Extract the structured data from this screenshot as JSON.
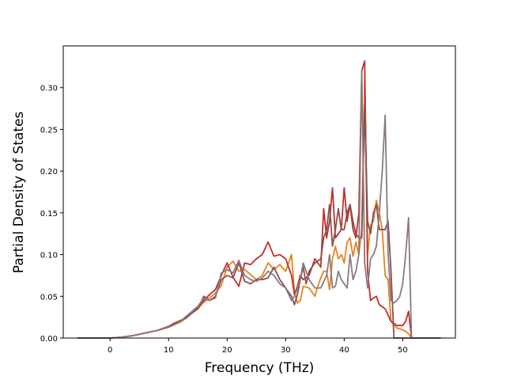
{
  "chart_data": {
    "type": "line",
    "xlabel": "Frequency (THz)",
    "ylabel": "Partial Density of States",
    "xlim": [
      -8,
      59
    ],
    "ylim": [
      0,
      0.35
    ],
    "xticks": [
      0,
      10,
      20,
      30,
      40,
      50
    ],
    "yticks": [
      0.0,
      0.05,
      0.1,
      0.15,
      0.2,
      0.25,
      0.3
    ],
    "ytick_labels": [
      "0.00",
      "0.05",
      "0.10",
      "0.15",
      "0.20",
      "0.25",
      "0.30"
    ],
    "grid": false,
    "legend": "none",
    "series": [
      {
        "color": "#e8821e",
        "points": [
          [
            -5.6,
            0
          ],
          [
            0,
            0
          ],
          [
            2,
            0.001
          ],
          [
            4,
            0.003
          ],
          [
            6,
            0.006
          ],
          [
            8,
            0.009
          ],
          [
            10,
            0.013
          ],
          [
            11,
            0.016
          ],
          [
            12,
            0.019
          ],
          [
            13,
            0.024
          ],
          [
            14,
            0.03
          ],
          [
            15,
            0.035
          ],
          [
            16,
            0.043
          ],
          [
            17,
            0.048
          ],
          [
            18,
            0.054
          ],
          [
            19,
            0.063
          ],
          [
            20,
            0.085
          ],
          [
            21,
            0.092
          ],
          [
            22,
            0.08
          ],
          [
            23,
            0.082
          ],
          [
            24,
            0.076
          ],
          [
            25,
            0.07
          ],
          [
            26,
            0.075
          ],
          [
            27,
            0.09
          ],
          [
            28,
            0.082
          ],
          [
            29,
            0.088
          ],
          [
            30,
            0.08
          ],
          [
            31,
            0.1
          ],
          [
            31.5,
            0.055
          ],
          [
            32,
            0.042
          ],
          [
            32.5,
            0.045
          ],
          [
            33,
            0.062
          ],
          [
            34,
            0.06
          ],
          [
            35,
            0.05
          ],
          [
            35.5,
            0.062
          ],
          [
            36,
            0.072
          ],
          [
            36.5,
            0.08
          ],
          [
            37,
            0.08
          ],
          [
            37.5,
            0.058
          ],
          [
            38,
            0.095
          ],
          [
            38.5,
            0.11
          ],
          [
            39,
            0.095
          ],
          [
            39.5,
            0.1
          ],
          [
            40,
            0.09
          ],
          [
            40.5,
            0.115
          ],
          [
            41,
            0.12
          ],
          [
            41.5,
            0.098
          ],
          [
            42,
            0.115
          ],
          [
            42.5,
            0.1
          ],
          [
            43,
            0.13
          ],
          [
            43.5,
            0.31
          ],
          [
            44,
            0.1
          ],
          [
            44.5,
            0.135
          ],
          [
            45,
            0.14
          ],
          [
            45.5,
            0.165
          ],
          [
            46,
            0.15
          ],
          [
            46.5,
            0.13
          ],
          [
            47,
            0.075
          ],
          [
            47.5,
            0.07
          ],
          [
            48,
            0.02
          ],
          [
            49,
            0.012
          ],
          [
            50,
            0.01
          ],
          [
            50.5,
            0.008
          ],
          [
            51,
            0.005
          ],
          [
            51.5,
            0
          ],
          [
            56.5,
            0
          ]
        ]
      },
      {
        "color": "#c0302a",
        "points": [
          [
            -5.6,
            0
          ],
          [
            0,
            0
          ],
          [
            2,
            0.001
          ],
          [
            4,
            0.003
          ],
          [
            6,
            0.006
          ],
          [
            8,
            0.009
          ],
          [
            10,
            0.014
          ],
          [
            11,
            0.018
          ],
          [
            12,
            0.021
          ],
          [
            13,
            0.024
          ],
          [
            14,
            0.03
          ],
          [
            15,
            0.036
          ],
          [
            16,
            0.045
          ],
          [
            17,
            0.052
          ],
          [
            18,
            0.058
          ],
          [
            19,
            0.075
          ],
          [
            20,
            0.09
          ],
          [
            21,
            0.073
          ],
          [
            22,
            0.062
          ],
          [
            23,
            0.09
          ],
          [
            24,
            0.088
          ],
          [
            25,
            0.095
          ],
          [
            26,
            0.1
          ],
          [
            27,
            0.115
          ],
          [
            28,
            0.098
          ],
          [
            29,
            0.1
          ],
          [
            30,
            0.095
          ],
          [
            31,
            0.075
          ],
          [
            31.5,
            0.052
          ],
          [
            32,
            0.062
          ],
          [
            32.5,
            0.075
          ],
          [
            33,
            0.07
          ],
          [
            34,
            0.075
          ],
          [
            35,
            0.095
          ],
          [
            36,
            0.085
          ],
          [
            36.5,
            0.155
          ],
          [
            37,
            0.12
          ],
          [
            37.5,
            0.14
          ],
          [
            38,
            0.18
          ],
          [
            38.5,
            0.12
          ],
          [
            39,
            0.125
          ],
          [
            39.5,
            0.13
          ],
          [
            40,
            0.18
          ],
          [
            40.5,
            0.14
          ],
          [
            41,
            0.16
          ],
          [
            41.5,
            0.13
          ],
          [
            42,
            0.12
          ],
          [
            42.5,
            0.15
          ],
          [
            43,
            0.32
          ],
          [
            43.5,
            0.332
          ],
          [
            44,
            0.08
          ],
          [
            44.5,
            0.045
          ],
          [
            45,
            0.048
          ],
          [
            45.5,
            0.05
          ],
          [
            46,
            0.04
          ],
          [
            47,
            0.035
          ],
          [
            48,
            0.02
          ],
          [
            49,
            0.015
          ],
          [
            50,
            0.015
          ],
          [
            50.5,
            0.02
          ],
          [
            51,
            0.032
          ],
          [
            51.5,
            0
          ],
          [
            56.5,
            0
          ]
        ]
      },
      {
        "color": "#8a5050",
        "points": [
          [
            -5.6,
            0
          ],
          [
            0,
            0
          ],
          [
            2,
            0.001
          ],
          [
            4,
            0.003
          ],
          [
            6,
            0.006
          ],
          [
            8,
            0.009
          ],
          [
            10,
            0.013
          ],
          [
            11,
            0.017
          ],
          [
            12,
            0.02
          ],
          [
            13,
            0.025
          ],
          [
            14,
            0.03
          ],
          [
            15,
            0.035
          ],
          [
            16,
            0.05
          ],
          [
            17,
            0.045
          ],
          [
            18,
            0.05
          ],
          [
            19,
            0.07
          ],
          [
            20,
            0.075
          ],
          [
            21,
            0.072
          ],
          [
            22,
            0.09
          ],
          [
            23,
            0.068
          ],
          [
            24,
            0.065
          ],
          [
            25,
            0.07
          ],
          [
            26,
            0.07
          ],
          [
            27,
            0.072
          ],
          [
            28,
            0.085
          ],
          [
            29,
            0.07
          ],
          [
            30,
            0.06
          ],
          [
            31,
            0.05
          ],
          [
            31.5,
            0.04
          ],
          [
            32,
            0.052
          ],
          [
            32.5,
            0.07
          ],
          [
            33,
            0.085
          ],
          [
            33.5,
            0.065
          ],
          [
            34,
            0.08
          ],
          [
            35,
            0.09
          ],
          [
            36,
            0.095
          ],
          [
            36.5,
            0.12
          ],
          [
            37,
            0.13
          ],
          [
            37.5,
            0.16
          ],
          [
            38,
            0.11
          ],
          [
            38.5,
            0.13
          ],
          [
            39,
            0.155
          ],
          [
            39.5,
            0.13
          ],
          [
            40,
            0.13
          ],
          [
            40.5,
            0.15
          ],
          [
            41,
            0.16
          ],
          [
            41.5,
            0.14
          ],
          [
            42,
            0.125
          ],
          [
            42.5,
            0.12
          ],
          [
            43,
            0.12
          ],
          [
            43.5,
            0.28
          ],
          [
            44,
            0.14
          ],
          [
            44.5,
            0.125
          ],
          [
            45,
            0.15
          ],
          [
            45.5,
            0.16
          ],
          [
            46,
            0.13
          ],
          [
            46.5,
            0.13
          ],
          [
            47,
            0.13
          ],
          [
            47.5,
            0.14
          ],
          [
            48,
            0.08
          ],
          [
            48.5,
            0
          ],
          [
            56.5,
            0
          ]
        ]
      },
      {
        "color": "#8a7a80",
        "points": [
          [
            -5.6,
            0
          ],
          [
            0,
            0
          ],
          [
            2,
            0.001
          ],
          [
            4,
            0.003
          ],
          [
            6,
            0.006
          ],
          [
            8,
            0.009
          ],
          [
            10,
            0.013
          ],
          [
            11,
            0.016
          ],
          [
            12,
            0.02
          ],
          [
            13,
            0.026
          ],
          [
            14,
            0.032
          ],
          [
            15,
            0.038
          ],
          [
            16,
            0.048
          ],
          [
            17,
            0.045
          ],
          [
            18,
            0.048
          ],
          [
            19,
            0.078
          ],
          [
            20,
            0.082
          ],
          [
            21,
            0.078
          ],
          [
            22,
            0.093
          ],
          [
            23,
            0.075
          ],
          [
            24,
            0.07
          ],
          [
            25,
            0.068
          ],
          [
            26,
            0.072
          ],
          [
            27,
            0.08
          ],
          [
            28,
            0.075
          ],
          [
            29,
            0.065
          ],
          [
            30,
            0.06
          ],
          [
            31,
            0.045
          ],
          [
            31.5,
            0.05
          ],
          [
            32,
            0.06
          ],
          [
            32.5,
            0.07
          ],
          [
            33,
            0.09
          ],
          [
            34,
            0.07
          ],
          [
            35,
            0.06
          ],
          [
            36,
            0.06
          ],
          [
            37,
            0.075
          ],
          [
            37.5,
            0.1
          ],
          [
            38,
            0.06
          ],
          [
            38.5,
            0.062
          ],
          [
            39,
            0.08
          ],
          [
            39.5,
            0.07
          ],
          [
            40,
            0.065
          ],
          [
            40.5,
            0.06
          ],
          [
            41,
            0.1
          ],
          [
            41.5,
            0.07
          ],
          [
            42,
            0.08
          ],
          [
            42.5,
            0.1
          ],
          [
            43,
            0.32
          ],
          [
            43.5,
            0.09
          ],
          [
            44,
            0.06
          ],
          [
            44.5,
            0.095
          ],
          [
            45,
            0.1
          ],
          [
            45.5,
            0.11
          ],
          [
            46,
            0.15
          ],
          [
            46.5,
            0.2
          ],
          [
            47,
            0.267
          ],
          [
            47.5,
            0.1
          ],
          [
            48,
            0.045
          ],
          [
            48.5,
            0.042
          ],
          [
            49,
            0.045
          ],
          [
            49.5,
            0.05
          ],
          [
            50,
            0.065
          ],
          [
            50.5,
            0.1
          ],
          [
            51,
            0.144
          ],
          [
            51.5,
            0
          ],
          [
            56.5,
            0
          ]
        ]
      }
    ]
  }
}
